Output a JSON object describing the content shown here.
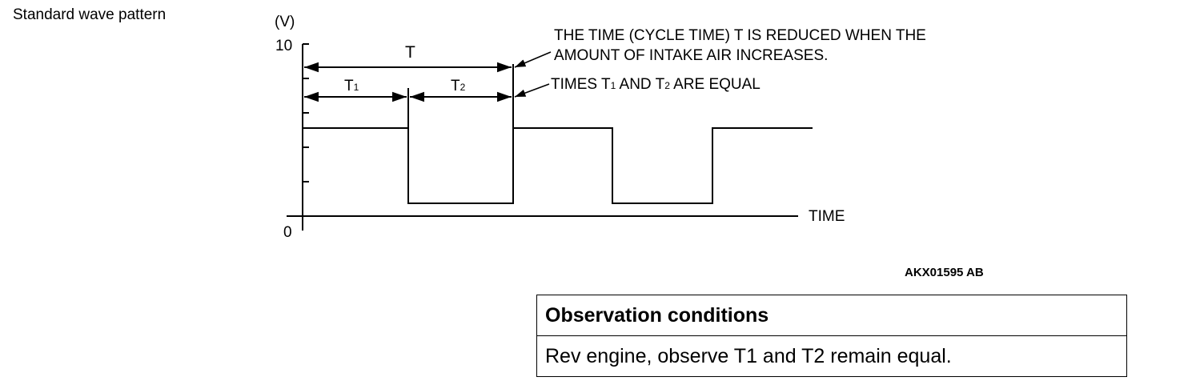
{
  "title": "Standard wave pattern",
  "diagram": {
    "y_unit": "(V)",
    "y_max_label": "10",
    "y_min_label": "0",
    "x_label": "TIME",
    "label_T": "T",
    "label_T1": "T",
    "label_T1_sub": "1",
    "label_T2": "T",
    "label_T2_sub": "2",
    "note1_line1": "THE TIME (CYCLE TIME) T IS REDUCED WHEN THE",
    "note1_line2": "AMOUNT OF INTAKE AIR INCREASES.",
    "note2_a": "TIMES T",
    "note2_sub1": "1",
    "note2_b": " AND T",
    "note2_sub2": "2",
    "note2_c": " ARE EQUAL"
  },
  "figure_code": "AKX01595 AB",
  "table": {
    "header": "Observation conditions",
    "row": "Rev engine, observe T1 and T2 remain equal."
  }
}
